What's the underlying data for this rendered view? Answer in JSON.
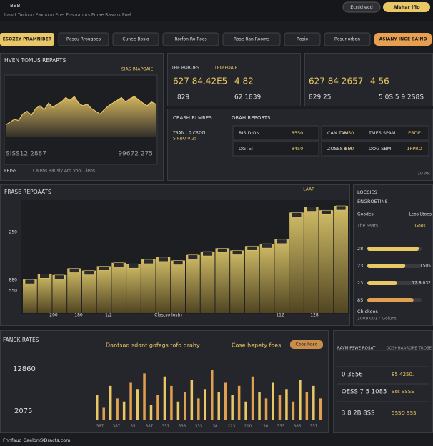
{
  "top_bar": {
    "logo": "BBB",
    "subtitle": "Ilanat Tucinon Eaxnoon Enel Ensuornnrs Enrae Rasonk Pnel",
    "buttons": [
      "Ecnid ecd",
      "Alshar lfio"
    ]
  },
  "filters": {
    "primary": "ESOZEY PRAMNIBER",
    "dropdowns": [
      "Rescu Rrougoes",
      "Cunee Bosio",
      "Rorfon Ro Roos",
      "Rose Ran Rooms",
      "Rosio",
      "Rosuriorbon"
    ],
    "action": "ASIANY INGE SAIND"
  },
  "reports_panel": {
    "title": "HVEN TOMUS REPARTS",
    "tag": "SIAS IMAPOAIE",
    "chart": {
      "type": "area",
      "color": "#e9c766",
      "values": [
        20,
        25,
        30,
        28,
        40,
        45,
        38,
        50,
        55,
        48,
        60,
        52,
        58,
        62,
        70,
        65,
        72,
        60,
        55,
        58,
        50,
        45,
        40,
        48,
        55,
        60,
        65,
        70,
        62,
        68,
        72,
        66,
        60,
        55,
        62,
        58
      ]
    },
    "left_value": "SISS12 2887",
    "right_value": "99672 275",
    "footer_label": "FRISS",
    "footer_text": "Calens Rausly Ard Vool Ciens"
  },
  "stat_cards": [
    {
      "title": "THE RORUES",
      "tag": "TEIMPOAIE",
      "main": "627 84.42E5",
      "side": "4 82",
      "sub": "829",
      "sub_side": "62 1839"
    },
    {
      "main": "627 84 2657",
      "side": "4 56",
      "sub": "829 25",
      "sub_side": "5 0S 5 9 2S8S"
    }
  ],
  "crash_panel": {
    "title": "CRASH RLMRES",
    "subtitle": "ORAH REPORTS",
    "notes": [
      "TSAN : 0.CRON",
      "SIRBO 0.25"
    ],
    "rows": [
      [
        {
          "label": "RISIDION",
          "value": "8550"
        },
        {
          "label": "CAN TAM",
          "value": "8 50"
        },
        {
          "label": "TMES SPAM",
          "value": "ERDE"
        }
      ],
      [
        {
          "label": "DGTEI",
          "value": "8450"
        },
        {
          "label": "ZOSES BM",
          "value": "8 50"
        },
        {
          "label": "DOG SBM",
          "value": "1PPRO"
        }
      ]
    ],
    "footer": "10 AR"
  },
  "frase_panel": {
    "title": "FRASE REPOAATS",
    "badge": "LAAP",
    "chart": {
      "type": "bar",
      "color": "#e9c766",
      "values": [
        30,
        35,
        34,
        40,
        38,
        42,
        45,
        44,
        48,
        50,
        47,
        52,
        55,
        58,
        56,
        60,
        62,
        66,
        90,
        95,
        92,
        96
      ]
    },
    "y_labels": [
      "250",
      "880",
      "550"
    ],
    "x_labels": [
      "200",
      "180",
      "1/2",
      "Clastso Iostrr",
      "112",
      "128"
    ]
  },
  "locales_panel": {
    "title": "LOCCIES",
    "subtitle": "ENGROETINS",
    "col_left": "Goodes",
    "col_right": "Lcos Ltoes",
    "label": "The Ssats",
    "badge": "Goos",
    "progress": [
      {
        "label": "28",
        "value_label": "",
        "fill": 0.95
      },
      {
        "label": "23",
        "value_label": "1505",
        "fill": 0.7
      },
      {
        "label": "23",
        "value_label": "17.8.032",
        "fill": 0.55
      },
      {
        "label": "85",
        "value_label": "",
        "fill": 0.85
      }
    ],
    "footer_title": "Chickoos",
    "footer_text": "1009 0017 Golunt"
  },
  "rates_panel": {
    "title": "FANCK RATES",
    "value1": "12860",
    "value2": "2075",
    "legend": [
      "Dantsad sdant gofegs tofo drahy",
      "Case hepety foes"
    ],
    "button": "Coos hosd",
    "chart": {
      "type": "bar",
      "colors": [
        "#e9c766",
        "#e0a050"
      ],
      "values": [
        40,
        20,
        55,
        35,
        30,
        60,
        50,
        75,
        25,
        40,
        70,
        55,
        30,
        45,
        65,
        35,
        50,
        80,
        45,
        60,
        40,
        55,
        30,
        70,
        45,
        35,
        60,
        40,
        50,
        30,
        65,
        45,
        55,
        35
      ]
    },
    "x_labels": [
      "387",
      "387",
      "35",
      "387",
      "357",
      "333",
      "333",
      "38",
      "223",
      "200",
      "138",
      "333",
      "385",
      "357"
    ]
  },
  "summary_panel": {
    "title": "RAVM PSWE ROSAT",
    "header_right": "DOSHHAARORE TROSE",
    "rows": [
      [
        "0 3656",
        "85 4250."
      ],
      [
        "OESS 7 5 1085",
        "Sss SSSS"
      ],
      [
        "3 8 2B 8SS",
        "5SSO SSS"
      ]
    ]
  },
  "footer": "Fnnfaud Caelon@Dracts.com"
}
